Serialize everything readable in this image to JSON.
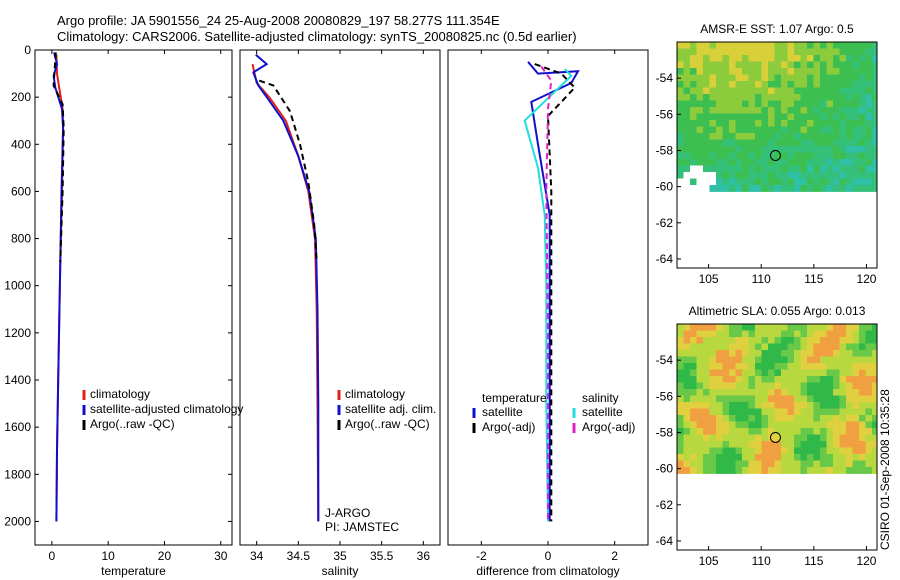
{
  "title": {
    "line1": "Argo profile: JA 5901556_24 25-Aug-2008 20080829_197 58.277S 111.354E",
    "line2": "Climatology: CARS2006. Satellite-adjusted climatology: synTS_20080825.nc (0.5d earlier)"
  },
  "credit": "CSIRO 01-Sep-2008 10:35:28",
  "colors": {
    "red": "#e0201a",
    "blue": "#1010cc",
    "black": "#000000",
    "cyan": "#22dddd",
    "magenta": "#e020c8"
  },
  "chart_data": [
    {
      "id": "temperature",
      "type": "line",
      "xlabel": "temperature",
      "xlim": [
        -3,
        32
      ],
      "ylim": [
        0,
        2100
      ],
      "xticks": [
        "0",
        "10",
        "20",
        "30"
      ],
      "xtick_values": [
        0,
        10,
        20,
        30
      ],
      "yticks": [
        "0",
        "200",
        "400",
        "600",
        "800",
        "1000",
        "1200",
        "1400",
        "1600",
        "1800",
        "2000"
      ],
      "ytick_values": [
        0,
        200,
        400,
        600,
        800,
        1000,
        1200,
        1400,
        1600,
        1800,
        2000
      ],
      "legend": [
        "climatology",
        "satellite-adjusted climatology",
        "Argo(..raw -QC)"
      ],
      "series": [
        {
          "name": "climatology",
          "color": "red",
          "dash": false,
          "points": [
            [
              0.8,
              20
            ],
            [
              0.9,
              100
            ],
            [
              1.3,
              160
            ],
            [
              1.9,
              250
            ],
            [
              2.0,
              320
            ],
            [
              1.8,
              600
            ],
            [
              1.5,
              900
            ],
            [
              1.2,
              1300
            ],
            [
              0.9,
              1700
            ],
            [
              0.8,
              2000
            ]
          ]
        },
        {
          "name": "satellite-adjusted climatology",
          "color": "blue",
          "dash": false,
          "points": [
            [
              0.4,
              10
            ],
            [
              0.9,
              60
            ],
            [
              0.3,
              110
            ],
            [
              0.6,
              160
            ],
            [
              1.8,
              250
            ],
            [
              2.0,
              330
            ],
            [
              1.7,
              600
            ],
            [
              1.5,
              900
            ],
            [
              1.2,
              1300
            ],
            [
              0.9,
              1700
            ],
            [
              0.8,
              2000
            ]
          ]
        },
        {
          "name": "Argo(..raw -QC)",
          "color": "black",
          "dash": true,
          "points": [
            [
              0.7,
              10
            ],
            [
              0.5,
              80
            ],
            [
              0.3,
              150
            ],
            [
              1.9,
              230
            ],
            [
              2.1,
              330
            ],
            [
              1.9,
              600
            ],
            [
              1.5,
              900
            ]
          ]
        }
      ]
    },
    {
      "id": "salinity",
      "type": "line",
      "xlabel": "salinity",
      "xlim": [
        33.8,
        36.2
      ],
      "ylim": [
        0,
        2100
      ],
      "xticks": [
        "34",
        "34.5",
        "35",
        "35.5",
        "36"
      ],
      "xtick_values": [
        34,
        34.5,
        35,
        35.5,
        36
      ],
      "yticks": [],
      "ytick_values": [],
      "legend": [
        "climatology",
        "satellite adj. clim.",
        "Argo(..raw -QC)"
      ],
      "annotation": [
        "J-ARGO",
        "PI: JAMSTEC"
      ],
      "series": [
        {
          "name": "climatology",
          "color": "red",
          "dash": false,
          "points": [
            [
              33.95,
              60
            ],
            [
              34.0,
              140
            ],
            [
              34.15,
              200
            ],
            [
              34.35,
              300
            ],
            [
              34.5,
              450
            ],
            [
              34.62,
              600
            ],
            [
              34.7,
              800
            ],
            [
              34.72,
              1100
            ],
            [
              34.73,
              1500
            ],
            [
              34.74,
              2000
            ]
          ]
        },
        {
          "name": "satellite adj. clim.",
          "color": "blue",
          "dash": false,
          "points": [
            [
              33.99,
              20
            ],
            [
              34.12,
              60
            ],
            [
              33.96,
              95
            ],
            [
              34.02,
              150
            ],
            [
              34.12,
              200
            ],
            [
              34.32,
              300
            ],
            [
              34.5,
              450
            ],
            [
              34.63,
              600
            ],
            [
              34.71,
              800
            ],
            [
              34.73,
              1100
            ],
            [
              34.74,
              1500
            ],
            [
              34.74,
              2000
            ]
          ]
        },
        {
          "name": "Argo(..raw -QC)",
          "color": "black",
          "dash": true,
          "points": [
            [
              34.03,
              130
            ],
            [
              34.2,
              150
            ],
            [
              34.4,
              260
            ],
            [
              34.52,
              400
            ],
            [
              34.62,
              560
            ],
            [
              34.69,
              740
            ],
            [
              34.72,
              900
            ]
          ]
        }
      ]
    },
    {
      "id": "difference",
      "type": "line",
      "xlabel": "difference from climatology",
      "xlim": [
        -3,
        3
      ],
      "ylim": [
        0,
        2100
      ],
      "xticks": [
        "-2",
        "0",
        "2"
      ],
      "xtick_values": [
        -2,
        0,
        2
      ],
      "yticks": [],
      "ytick_values": [],
      "legend_temperature": {
        "heading": "temperature",
        "items": [
          "satellite",
          "Argo(-adj)"
        ]
      },
      "legend_salinity": {
        "heading": "salinity",
        "items": [
          "satellite",
          "Argo(-adj)"
        ]
      },
      "series": [
        {
          "name": "temperature satellite",
          "color": "blue",
          "dash": false,
          "points": [
            [
              -0.6,
              50
            ],
            [
              -0.3,
              100
            ],
            [
              0.9,
              90
            ],
            [
              0.7,
              140
            ],
            [
              -0.5,
              220
            ],
            [
              -0.3,
              400
            ],
            [
              0.05,
              700
            ],
            [
              0.05,
              1200
            ],
            [
              0.05,
              2000
            ]
          ]
        },
        {
          "name": "temperature Argo(-adj)",
          "color": "black",
          "dash": true,
          "points": [
            [
              -0.4,
              60
            ],
            [
              0.4,
              100
            ],
            [
              0.8,
              160
            ],
            [
              0.0,
              280
            ],
            [
              0.1,
              600
            ],
            [
              0.1,
              1200
            ],
            [
              0.1,
              2000
            ]
          ]
        },
        {
          "name": "salinity satellite",
          "color": "cyan",
          "dash": false,
          "points": [
            [
              0.5,
              80
            ],
            [
              0.7,
              110
            ],
            [
              -0.7,
              300
            ],
            [
              -0.3,
              500
            ],
            [
              -0.1,
              700
            ],
            [
              -0.05,
              1000
            ],
            [
              -0.05,
              1500
            ],
            [
              0.0,
              2000
            ]
          ]
        },
        {
          "name": "salinity Argo(-adj)",
          "color": "magenta",
          "dash": true,
          "points": [
            [
              -0.2,
              70
            ],
            [
              0.1,
              130
            ],
            [
              0.0,
              250
            ],
            [
              -0.05,
              600
            ],
            [
              0.0,
              1200
            ],
            [
              0.0,
              2000
            ]
          ]
        }
      ]
    },
    {
      "id": "sst_map",
      "type": "heatmap",
      "title": "AMSR-E SST: 1.07 Argo: 0.5",
      "xlim": [
        102,
        121
      ],
      "ylim": [
        -64.5,
        -52
      ],
      "xticks": [
        "105",
        "110",
        "115",
        "120"
      ],
      "xtick_values": [
        105,
        110,
        115,
        120
      ],
      "yticks": [
        "-54",
        "-56",
        "-58",
        "-60",
        "-62",
        "-64"
      ],
      "ytick_values": [
        -54,
        -56,
        -58,
        -60,
        -62,
        -64
      ],
      "data_extent_lat": [
        -60,
        -52
      ],
      "marker": {
        "lon": 111.354,
        "lat": -58.277
      }
    },
    {
      "id": "sla_map",
      "type": "heatmap",
      "title": "Altimetric SLA: 0.055 Argo: 0.013",
      "xlim": [
        102,
        121
      ],
      "ylim": [
        -64.5,
        -52
      ],
      "xticks": [
        "105",
        "110",
        "115",
        "120"
      ],
      "xtick_values": [
        105,
        110,
        115,
        120
      ],
      "yticks": [
        "-54",
        "-56",
        "-58",
        "-60",
        "-62",
        "-64"
      ],
      "ytick_values": [
        -54,
        -56,
        -58,
        -60,
        -62,
        -64
      ],
      "data_extent_lat": [
        -60,
        -52
      ],
      "marker": {
        "lon": 111.354,
        "lat": -58.277
      }
    }
  ]
}
